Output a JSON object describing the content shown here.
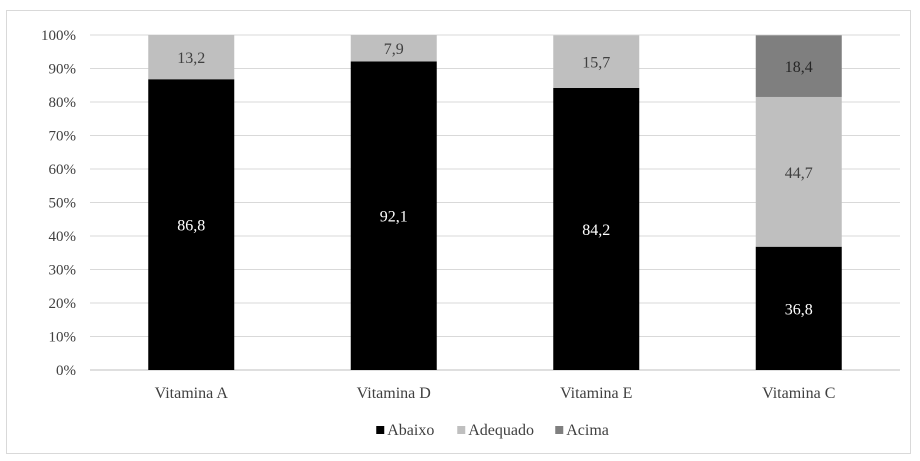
{
  "chart_data": {
    "type": "bar",
    "stacked": true,
    "percent": true,
    "categories": [
      "Vitamina A",
      "Vitamina D",
      "Vitamina E",
      "Vitamina C"
    ],
    "series": [
      {
        "name": "Abaixo",
        "values": [
          86.8,
          92.1,
          84.2,
          36.8
        ],
        "labels": [
          "86,8",
          "92,1",
          "84,2",
          "36,8"
        ],
        "color": "#000000",
        "label_color": "#ffffff"
      },
      {
        "name": "Adequado",
        "values": [
          13.2,
          7.9,
          15.7,
          44.7
        ],
        "labels": [
          "13,2",
          "7,9",
          "15,7",
          "44,7"
        ],
        "color": "#bfbfbf",
        "label_color": "#404040"
      },
      {
        "name": "Acima",
        "values": [
          0,
          0,
          0,
          18.4
        ],
        "labels": [
          "",
          "",
          "",
          "18,4"
        ],
        "color": "#7f7f7f",
        "label_color": "#262626"
      }
    ],
    "ylim": [
      0,
      100
    ],
    "yticks": [
      "0%",
      "10%",
      "20%",
      "30%",
      "40%",
      "50%",
      "60%",
      "70%",
      "80%",
      "90%",
      "100%"
    ],
    "grid": true,
    "legend_position": "bottom",
    "title": "",
    "xlabel": "",
    "ylabel": ""
  }
}
